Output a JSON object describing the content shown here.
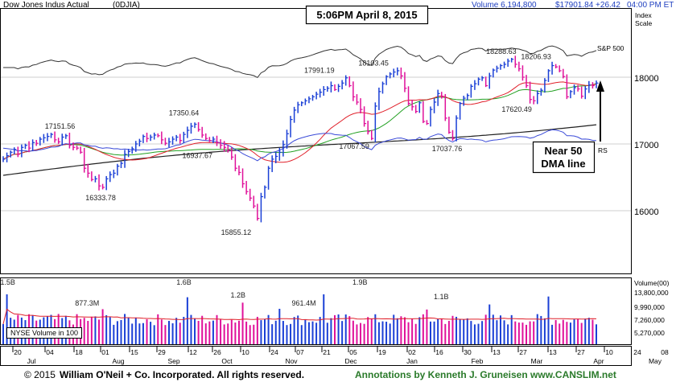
{
  "header": {
    "name": "Dow Jones Indus Actual",
    "symbol": "(0DJIA)",
    "volume_text": "Volume 6,194,800",
    "price_text": "$17901.84 +26.42",
    "time_text": "04:00 PM ET",
    "index_scale_1": "Index",
    "index_scale_2": "Scale"
  },
  "timestamp_box": "5:06PM April 8, 2015",
  "callout": {
    "line1": "Near 50",
    "line2": "DMA line"
  },
  "right_labels": {
    "sp500": "S&P 500",
    "rs": "RS"
  },
  "price_ticks": [
    "18000",
    "17000",
    "16000"
  ],
  "volume_header": "Volume(00)",
  "volume_ticks": [
    "13,800,000",
    "9,990,000",
    "7,260,000",
    "5,270,000"
  ],
  "volume_box": "NYSE Volume in 100",
  "x_ticks": [
    "20",
    "04",
    "18",
    "01",
    "15",
    "29",
    "12",
    "26",
    "10",
    "24",
    "07",
    "21",
    "05",
    "19",
    "02",
    "16",
    "30",
    "13",
    "27",
    "13",
    "27",
    "10",
    "24",
    "08"
  ],
  "month_labels": [
    "Jul",
    "Aug",
    "Sep",
    "Oct",
    "Nov",
    "Dec",
    "Jan",
    "Feb",
    "Mar",
    "Apr",
    "May"
  ],
  "footer": {
    "copyright": "© 2015",
    "company": "William O'Neil + Co. Incorporated. All rights reserved.",
    "annotation": "Annotations by Kenneth J. Gruneisen www.CANSLIM.net"
  },
  "colors": {
    "up": "#1a3fd6",
    "down": "#e0109a",
    "ma50": "#22a022",
    "ma200": "#222222",
    "ma_red": "#e0202a",
    "rs": "#3a4ad8",
    "sp500": "#333333",
    "footer_annot": "#2a7a2a"
  },
  "chart_data": {
    "type": "candlestick",
    "price_scale": "log",
    "ylim": [
      15400,
      18600
    ],
    "volume_ylim": [
      0,
      13800000
    ],
    "date_range": [
      "2014-06-16",
      "2015-05-08"
    ],
    "price_annotations": [
      {
        "date": "2014-07-17",
        "value": "17151.56"
      },
      {
        "date": "2014-08-07",
        "value": "16333.78"
      },
      {
        "date": "2014-09-19",
        "value": "17350.64"
      },
      {
        "date": "2014-09-26",
        "value": "16937.67"
      },
      {
        "date": "2014-10-16",
        "value": "15855.12"
      },
      {
        "date": "2014-11-28",
        "value": "17991.19"
      },
      {
        "date": "2014-12-16",
        "value": "17067.59"
      },
      {
        "date": "2014-12-26",
        "value": "18103.45"
      },
      {
        "date": "2015-02-02",
        "value": "17037.76"
      },
      {
        "date": "2015-03-02",
        "value": "18288.63"
      },
      {
        "date": "2015-03-10",
        "value": "17620.49"
      },
      {
        "date": "2015-03-20",
        "value": "18206.93"
      }
    ],
    "volume_annotations": [
      {
        "date": "2014-06-20",
        "value": "1.5B"
      },
      {
        "date": "2014-07-31",
        "value": "877.3M"
      },
      {
        "date": "2014-09-19",
        "value": "1.6B"
      },
      {
        "date": "2014-10-17",
        "value": "1.2B"
      },
      {
        "date": "2014-11-20",
        "value": "961.4M"
      },
      {
        "date": "2014-12-19",
        "value": "1.9B"
      },
      {
        "date": "2015-01-30",
        "value": "1.1B"
      }
    ],
    "close": [
      16780,
      16830,
      16880,
      16920,
      16850,
      16950,
      16980,
      16940,
      17020,
      17010,
      17070,
      17090,
      17110,
      17140,
      17060,
      17030,
      17100,
      17120,
      16980,
      16950,
      16940,
      16880,
      16650,
      16580,
      16490,
      16500,
      16400,
      16380,
      16500,
      16560,
      16580,
      16680,
      16720,
      16850,
      16890,
      16930,
      17000,
      17040,
      17110,
      17080,
      17100,
      17130,
      17120,
      17060,
      17010,
      17030,
      17070,
      17100,
      17050,
      17140,
      17200,
      17260,
      17290,
      17210,
      17130,
      17080,
      17050,
      17070,
      17020,
      16980,
      16950,
      16910,
      16810,
      16650,
      16590,
      16430,
      16320,
      16230,
      16120,
      15950,
      16250,
      16380,
      16650,
      16780,
      16820,
      16880,
      16990,
      17150,
      17360,
      17500,
      17580,
      17610,
      17640,
      17670,
      17700,
      17740,
      17770,
      17810,
      17830,
      17870,
      17810,
      17860,
      17910,
      17990,
      17870,
      17700,
      17620,
      17510,
      17300,
      17180,
      17080,
      17560,
      17780,
      17900,
      18010,
      18050,
      18080,
      18100,
      18020,
      17830,
      17600,
      17550,
      17480,
      17610,
      17330,
      17300,
      17510,
      17620,
      17750,
      17700,
      17380,
      17170,
      17080,
      17380,
      17600,
      17680,
      17720,
      17860,
      17900,
      17970,
      17990,
      17870,
      18020,
      18110,
      18140,
      18180,
      18200,
      18250,
      18280,
      18200,
      18130,
      18000,
      17870,
      17660,
      17640,
      17750,
      17800,
      17950,
      18100,
      18180,
      18160,
      18100,
      18010,
      17700,
      17780,
      17840,
      17820,
      17710,
      17820,
      17880,
      17870,
      17910
    ]
  }
}
